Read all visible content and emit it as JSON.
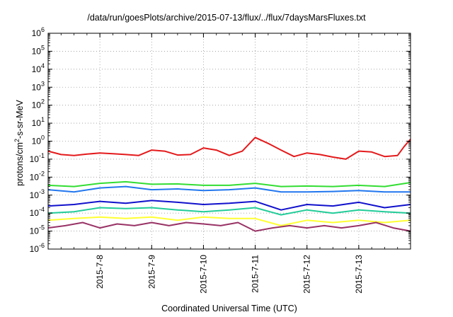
{
  "chart_data": {
    "type": "line",
    "title": "/data/run/goesPlots/archive/2015-07-13/flux/../flux/7daysMarsFluxes.txt",
    "xlabel": "Coordinated Universal Time (UTC)",
    "ylabel": "protons/cm2-s-sr-MeV",
    "ylabel_parts": {
      "before_sup": "protons/cm",
      "sup": "2",
      "after_sup": "-s-sr-MeV"
    },
    "yscale": "log",
    "ylim": [
      1e-06,
      1000000.0
    ],
    "y_tick_labels": [
      {
        "base": "10",
        "exp": "-6"
      },
      {
        "base": "10",
        "exp": "-5"
      },
      {
        "base": "10",
        "exp": "-4"
      },
      {
        "base": "10",
        "exp": "-3"
      },
      {
        "base": "10",
        "exp": "-2"
      },
      {
        "base": "10",
        "exp": "-1"
      },
      {
        "base": "10",
        "exp": "0"
      },
      {
        "base": "10",
        "exp": "1"
      },
      {
        "base": "10",
        "exp": "2"
      },
      {
        "base": "10",
        "exp": "3"
      },
      {
        "base": "10",
        "exp": "4"
      },
      {
        "base": "10",
        "exp": "5"
      },
      {
        "base": "10",
        "exp": "6"
      }
    ],
    "xlim": [
      "2015-07-07",
      "2015-07-14"
    ],
    "x_tick_labels": [
      {
        "date": "2015-07-08",
        "label": "2015-7-8"
      },
      {
        "date": "2015-07-09",
        "label": "2015-7-9"
      },
      {
        "date": "2015-07-10",
        "label": "2015-7-10"
      },
      {
        "date": "2015-07-11",
        "label": "2015-7-11"
      },
      {
        "date": "2015-07-12",
        "label": "2015-7-12"
      },
      {
        "date": "2015-07-13",
        "label": "2015-7-13"
      }
    ],
    "grid": "dotted",
    "legend": "none",
    "series": [
      {
        "color": "#e41a1c",
        "points": [
          [
            "2015-07-07 00:00",
            0.28
          ],
          [
            "2015-07-07 06:00",
            0.18
          ],
          [
            "2015-07-07 12:00",
            0.16
          ],
          [
            "2015-07-07 18:00",
            0.19
          ],
          [
            "2015-07-08 00:00",
            0.22
          ],
          [
            "2015-07-08 06:00",
            0.2
          ],
          [
            "2015-07-08 12:00",
            0.18
          ],
          [
            "2015-07-08 18:00",
            0.16
          ],
          [
            "2015-07-09 00:00",
            0.32
          ],
          [
            "2015-07-09 06:00",
            0.28
          ],
          [
            "2015-07-09 12:00",
            0.17
          ],
          [
            "2015-07-09 18:00",
            0.18
          ],
          [
            "2015-07-10 00:00",
            0.42
          ],
          [
            "2015-07-10 06:00",
            0.32
          ],
          [
            "2015-07-10 12:00",
            0.16
          ],
          [
            "2015-07-10 18:00",
            0.28
          ],
          [
            "2015-07-11 00:00",
            1.6
          ],
          [
            "2015-07-11 06:00",
            0.75
          ],
          [
            "2015-07-11 12:00",
            0.32
          ],
          [
            "2015-07-11 18:00",
            0.14
          ],
          [
            "2015-07-12 00:00",
            0.22
          ],
          [
            "2015-07-12 06:00",
            0.18
          ],
          [
            "2015-07-12 12:00",
            0.13
          ],
          [
            "2015-07-12 18:00",
            0.1
          ],
          [
            "2015-07-13 00:00",
            0.28
          ],
          [
            "2015-07-13 06:00",
            0.25
          ],
          [
            "2015-07-13 12:00",
            0.14
          ],
          [
            "2015-07-13 18:00",
            0.16
          ],
          [
            "2015-07-13 21:00",
            0.5
          ],
          [
            "2015-07-14 00:00",
            1.3
          ]
        ]
      },
      {
        "color": "#33dd33",
        "points": [
          [
            "2015-07-07 00:00",
            0.0035
          ],
          [
            "2015-07-07 12:00",
            0.003
          ],
          [
            "2015-07-08 00:00",
            0.0045
          ],
          [
            "2015-07-08 12:00",
            0.0055
          ],
          [
            "2015-07-09 00:00",
            0.004
          ],
          [
            "2015-07-09 12:00",
            0.0042
          ],
          [
            "2015-07-10 00:00",
            0.0035
          ],
          [
            "2015-07-10 12:00",
            0.0035
          ],
          [
            "2015-07-11 00:00",
            0.0045
          ],
          [
            "2015-07-11 12:00",
            0.003
          ],
          [
            "2015-07-12 00:00",
            0.0032
          ],
          [
            "2015-07-12 12:00",
            0.003
          ],
          [
            "2015-07-13 00:00",
            0.0035
          ],
          [
            "2015-07-13 12:00",
            0.003
          ],
          [
            "2015-07-14 00:00",
            0.005
          ]
        ]
      },
      {
        "color": "#2277ee",
        "points": [
          [
            "2015-07-07 00:00",
            0.002
          ],
          [
            "2015-07-07 12:00",
            0.0015
          ],
          [
            "2015-07-08 00:00",
            0.0025
          ],
          [
            "2015-07-08 12:00",
            0.003
          ],
          [
            "2015-07-09 00:00",
            0.002
          ],
          [
            "2015-07-09 12:00",
            0.0022
          ],
          [
            "2015-07-10 00:00",
            0.0018
          ],
          [
            "2015-07-10 12:00",
            0.002
          ],
          [
            "2015-07-11 00:00",
            0.0025
          ],
          [
            "2015-07-11 12:00",
            0.0015
          ],
          [
            "2015-07-12 00:00",
            0.0015
          ],
          [
            "2015-07-12 12:00",
            0.0016
          ],
          [
            "2015-07-13 00:00",
            0.0018
          ],
          [
            "2015-07-13 12:00",
            0.0015
          ],
          [
            "2015-07-14 00:00",
            0.0015
          ]
        ]
      },
      {
        "color": "#1111cc",
        "points": [
          [
            "2015-07-07 00:00",
            0.00025
          ],
          [
            "2015-07-07 12:00",
            0.0003
          ],
          [
            "2015-07-08 00:00",
            0.00045
          ],
          [
            "2015-07-08 12:00",
            0.00035
          ],
          [
            "2015-07-09 00:00",
            0.0005
          ],
          [
            "2015-07-09 12:00",
            0.0004
          ],
          [
            "2015-07-10 00:00",
            0.0003
          ],
          [
            "2015-07-10 12:00",
            0.00035
          ],
          [
            "2015-07-11 00:00",
            0.00045
          ],
          [
            "2015-07-11 12:00",
            0.00015
          ],
          [
            "2015-07-12 00:00",
            0.0003
          ],
          [
            "2015-07-12 12:00",
            0.00025
          ],
          [
            "2015-07-13 00:00",
            0.0004
          ],
          [
            "2015-07-13 12:00",
            0.0002
          ],
          [
            "2015-07-14 00:00",
            0.0003
          ]
        ]
      },
      {
        "color": "#22cc99",
        "points": [
          [
            "2015-07-07 00:00",
            0.0001
          ],
          [
            "2015-07-07 12:00",
            0.00012
          ],
          [
            "2015-07-08 00:00",
            0.0002
          ],
          [
            "2015-07-08 12:00",
            0.00018
          ],
          [
            "2015-07-09 00:00",
            0.0002
          ],
          [
            "2015-07-09 12:00",
            0.00015
          ],
          [
            "2015-07-10 00:00",
            0.00012
          ],
          [
            "2015-07-10 12:00",
            0.00015
          ],
          [
            "2015-07-11 00:00",
            0.0002
          ],
          [
            "2015-07-11 12:00",
            8e-05
          ],
          [
            "2015-07-12 00:00",
            0.00015
          ],
          [
            "2015-07-12 12:00",
            0.0001
          ],
          [
            "2015-07-13 00:00",
            0.00015
          ],
          [
            "2015-07-13 12:00",
            0.00012
          ],
          [
            "2015-07-14 00:00",
            0.0001
          ]
        ]
      },
      {
        "color": "#ffff33",
        "points": [
          [
            "2015-07-07 00:00",
            4e-05
          ],
          [
            "2015-07-07 12:00",
            5e-05
          ],
          [
            "2015-07-08 00:00",
            6e-05
          ],
          [
            "2015-07-08 12:00",
            5e-05
          ],
          [
            "2015-07-09 00:00",
            6e-05
          ],
          [
            "2015-07-09 12:00",
            4e-05
          ],
          [
            "2015-07-10 00:00",
            6e-05
          ],
          [
            "2015-07-10 12:00",
            5e-05
          ],
          [
            "2015-07-11 00:00",
            5e-05
          ],
          [
            "2015-07-11 12:00",
            2e-05
          ],
          [
            "2015-07-12 00:00",
            4e-05
          ],
          [
            "2015-07-12 12:00",
            3e-05
          ],
          [
            "2015-07-13 00:00",
            4e-05
          ],
          [
            "2015-07-13 12:00",
            3e-05
          ],
          [
            "2015-07-14 00:00",
            4e-05
          ]
        ]
      },
      {
        "color": "#993366",
        "points": [
          [
            "2015-07-07 00:00",
            1.5e-05
          ],
          [
            "2015-07-07 08:00",
            2e-05
          ],
          [
            "2015-07-07 16:00",
            3e-05
          ],
          [
            "2015-07-08 00:00",
            1.5e-05
          ],
          [
            "2015-07-08 08:00",
            2.5e-05
          ],
          [
            "2015-07-08 16:00",
            2e-05
          ],
          [
            "2015-07-09 00:00",
            3e-05
          ],
          [
            "2015-07-09 08:00",
            2e-05
          ],
          [
            "2015-07-09 16:00",
            3e-05
          ],
          [
            "2015-07-10 00:00",
            2.5e-05
          ],
          [
            "2015-07-10 08:00",
            2e-05
          ],
          [
            "2015-07-10 16:00",
            3e-05
          ],
          [
            "2015-07-11 00:00",
            1e-05
          ],
          [
            "2015-07-11 08:00",
            1.5e-05
          ],
          [
            "2015-07-11 16:00",
            2e-05
          ],
          [
            "2015-07-12 00:00",
            1.5e-05
          ],
          [
            "2015-07-12 08:00",
            2e-05
          ],
          [
            "2015-07-12 16:00",
            1.5e-05
          ],
          [
            "2015-07-13 00:00",
            2e-05
          ],
          [
            "2015-07-13 08:00",
            3e-05
          ],
          [
            "2015-07-13 16:00",
            1.5e-05
          ],
          [
            "2015-07-14 00:00",
            1e-05
          ]
        ]
      }
    ]
  }
}
